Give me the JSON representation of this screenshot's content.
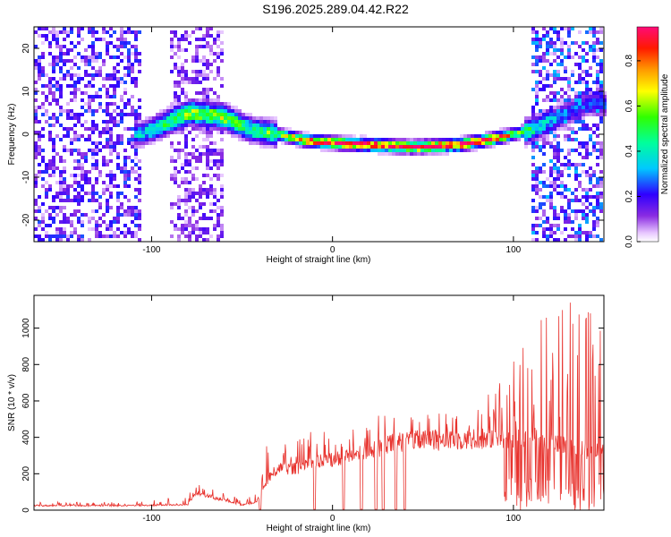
{
  "title": "S196.2025.289.04.42.R22",
  "colors": {
    "snr_line": "#e8332e",
    "axis": "#000000"
  },
  "chart_data": [
    {
      "type": "heatmap",
      "name": "spectrogram",
      "xlabel": "Height of straight line (km)",
      "ylabel": "Frequency (Hz)",
      "xlim": [
        -165,
        150
      ],
      "ylim": [
        -25,
        25
      ],
      "xticks": [
        -100,
        0,
        100
      ],
      "yticks": [
        -20,
        -10,
        0,
        10,
        20
      ],
      "colorbar": {
        "label": "Normalized spectral amplitude",
        "range": [
          0,
          0.95
        ],
        "ticks": [
          "0.0",
          "0.2",
          "0.4",
          "0.6",
          "0.8"
        ],
        "colormap": "rainbow (violet → blue → cyan → green → yellow → red → magenta)"
      },
      "ridge": {
        "description": "Dominant signal ridge frequency vs height",
        "x": [
          -105,
          -90,
          -78,
          -60,
          -45,
          -30,
          -15,
          0,
          20,
          45,
          70,
          90,
          110,
          125,
          140
        ],
        "y": [
          0,
          3,
          5,
          4,
          1,
          0,
          -1.5,
          -2,
          -2.5,
          -3,
          -2.5,
          -1,
          1,
          4,
          7
        ],
        "peak_amplitude": [
          0.35,
          0.5,
          0.6,
          0.6,
          0.45,
          0.55,
          0.8,
          0.85,
          0.9,
          0.9,
          0.9,
          0.85,
          0.45,
          0.3,
          0.25
        ]
      },
      "noise_regions": [
        {
          "x_range": [
            -165,
            -105
          ],
          "amplitude": 0.2
        },
        {
          "x_range": [
            -90,
            -60
          ],
          "amplitude": 0.15
        },
        {
          "x_range": [
            110,
            150
          ],
          "amplitude": 0.25
        }
      ]
    },
    {
      "type": "line",
      "name": "snr",
      "xlabel": "Height of straight line (km)",
      "ylabel": "SNR (10 * v/v)",
      "xlim": [
        -165,
        150
      ],
      "ylim": [
        0,
        1180
      ],
      "xticks": [
        -100,
        0,
        100
      ],
      "yticks": [
        0,
        200,
        400,
        600,
        800,
        1000
      ],
      "envelope": {
        "x": [
          -165,
          -110,
          -80,
          -75,
          -70,
          -50,
          -42,
          -35,
          -30,
          -20,
          -10,
          0,
          10,
          20,
          30,
          40,
          60,
          80,
          90,
          100,
          110,
          120,
          130,
          140,
          150
        ],
        "base": [
          25,
          25,
          30,
          100,
          80,
          30,
          45,
          180,
          230,
          230,
          260,
          280,
          300,
          320,
          360,
          380,
          385,
          390,
          400,
          390,
          400,
          370,
          350,
          330,
          320
        ],
        "spike": [
          45,
          45,
          80,
          150,
          130,
          60,
          100,
          440,
          380,
          420,
          460,
          420,
          470,
          500,
          540,
          560,
          540,
          600,
          660,
          840,
          1050,
          1180,
          1180,
          1160,
          1000
        ]
      },
      "dropouts_x": [
        -40,
        -10,
        6,
        16,
        24,
        28,
        35,
        40
      ]
    }
  ]
}
